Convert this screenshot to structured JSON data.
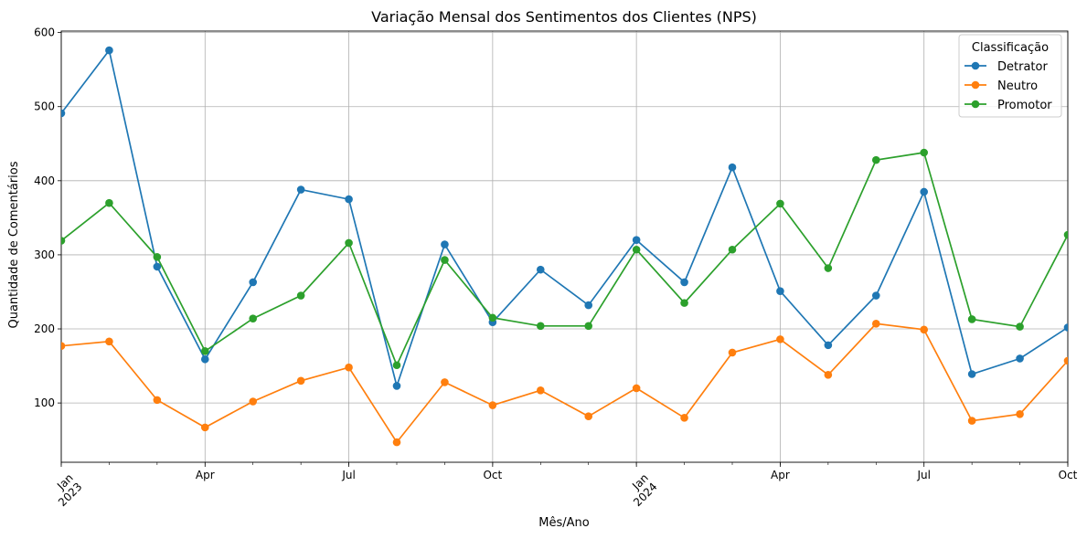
{
  "chart_data": {
    "type": "line",
    "title": "Variação Mensal dos Sentimentos dos Clientes (NPS)",
    "xlabel": "Mês/Ano",
    "ylabel": "Quantidade de Comentários",
    "x": [
      "2023-01",
      "2023-02",
      "2023-03",
      "2023-04",
      "2023-05",
      "2023-06",
      "2023-07",
      "2023-08",
      "2023-09",
      "2023-10",
      "2023-11",
      "2023-12",
      "2024-01",
      "2024-02",
      "2024-03",
      "2024-04",
      "2024-05",
      "2024-06",
      "2024-07",
      "2024-08",
      "2024-09",
      "2024-10"
    ],
    "x_ticks": [
      {
        "month": "2023-01",
        "label": "Jan",
        "sublabel": "2023"
      },
      {
        "month": "2023-04",
        "label": "Apr"
      },
      {
        "month": "2023-07",
        "label": "Jul"
      },
      {
        "month": "2023-10",
        "label": "Oct"
      },
      {
        "month": "2024-01",
        "label": "Jan",
        "sublabel": "2024"
      },
      {
        "month": "2024-04",
        "label": "Apr"
      },
      {
        "month": "2024-07",
        "label": "Jul"
      },
      {
        "month": "2024-10",
        "label": "Oct"
      }
    ],
    "y_ticks": [
      100,
      200,
      300,
      400,
      500,
      600
    ],
    "ylim": [
      20,
      602
    ],
    "grid": true,
    "legend": {
      "title": "Classificação",
      "position": "top-right"
    },
    "series": [
      {
        "name": "Detrator",
        "color": "#1f77b4",
        "values": [
          491,
          576,
          284,
          159,
          263,
          388,
          375,
          123,
          314,
          209,
          280,
          232,
          320,
          263,
          418,
          251,
          178,
          245,
          385,
          139,
          160,
          202
        ]
      },
      {
        "name": "Neutro",
        "color": "#ff7f0e",
        "values": [
          177,
          183,
          104,
          67,
          102,
          130,
          148,
          47,
          128,
          97,
          117,
          82,
          120,
          80,
          168,
          186,
          138,
          207,
          199,
          76,
          85,
          157
        ]
      },
      {
        "name": "Promotor",
        "color": "#2ca02c",
        "values": [
          319,
          370,
          297,
          170,
          214,
          245,
          316,
          151,
          293,
          215,
          204,
          204,
          307,
          235,
          307,
          369,
          282,
          428,
          438,
          213,
          203,
          327
        ]
      }
    ]
  }
}
